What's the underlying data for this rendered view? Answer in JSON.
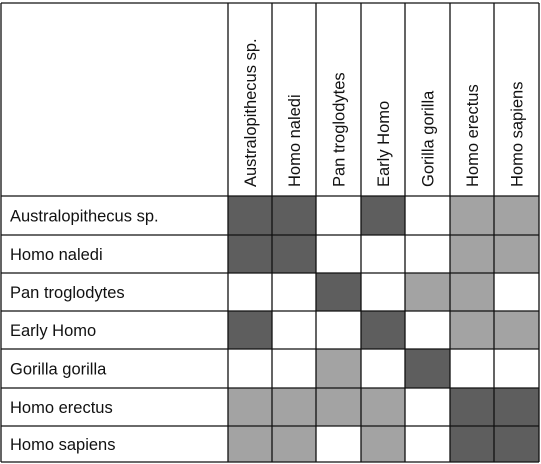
{
  "chart_data": {
    "type": "heatmap",
    "columns": [
      "Australopithecus sp.",
      "Homo naledi",
      "Pan troglodytes",
      "Early Homo",
      "Gorilla gorilla",
      "Homo erectus",
      "Homo sapiens"
    ],
    "rows": [
      "Australopithecus sp.",
      "Homo naledi",
      "Pan troglodytes",
      "Early Homo",
      "Gorilla gorilla",
      "Homo erectus",
      "Homo sapiens"
    ],
    "levels": [
      [
        2,
        2,
        0,
        2,
        0,
        1,
        1
      ],
      [
        2,
        2,
        0,
        0,
        0,
        1,
        1
      ],
      [
        0,
        0,
        2,
        0,
        1,
        1,
        0
      ],
      [
        2,
        0,
        0,
        2,
        0,
        1,
        1
      ],
      [
        0,
        0,
        1,
        0,
        2,
        0,
        0
      ],
      [
        1,
        1,
        1,
        1,
        0,
        2,
        2
      ],
      [
        1,
        1,
        0,
        1,
        0,
        2,
        2
      ]
    ],
    "level_colors": [
      "#ffffff",
      "#a3a3a3",
      "#5e5e5e"
    ],
    "grid_color": "#111111",
    "legend": "none"
  }
}
